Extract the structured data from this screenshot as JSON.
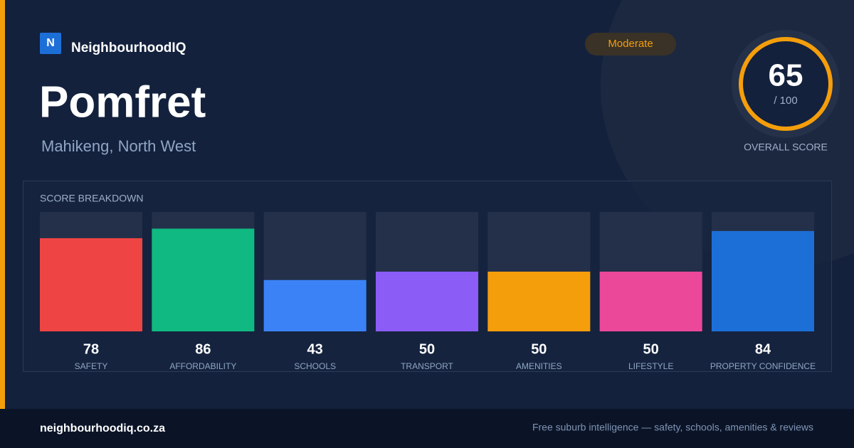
{
  "brand": "NeighbourhoodIQ",
  "logo": "N",
  "title": "Pomfret",
  "subtitle": "Mahikeng, North West",
  "badge": "Moderate",
  "score": {
    "value": 65,
    "out_of": "/ 100",
    "label": "OVERALL SCORE"
  },
  "breakdown": {
    "type": "bar",
    "title": "SCORE BREAKDOWN",
    "categories": [
      "SAFETY",
      "AFFORDABILITY",
      "SCHOOLS",
      "TRANSPORT",
      "AMENITIES",
      "LIFESTYLE",
      "PROPERTY CONFIDENCE"
    ],
    "values": [
      78,
      86,
      43,
      50,
      50,
      50,
      84
    ],
    "colors": [
      "#ef4444",
      "#10b981",
      "#3b82f6",
      "#8b5cf6",
      "#f59e0b",
      "#ec4899",
      "#1d6fd8"
    ],
    "ylim": [
      0,
      100
    ]
  },
  "footer": {
    "site": "neighbourhoodiq.co.za",
    "tagline": "Free suburb intelligence — safety, schools, amenities & reviews"
  }
}
